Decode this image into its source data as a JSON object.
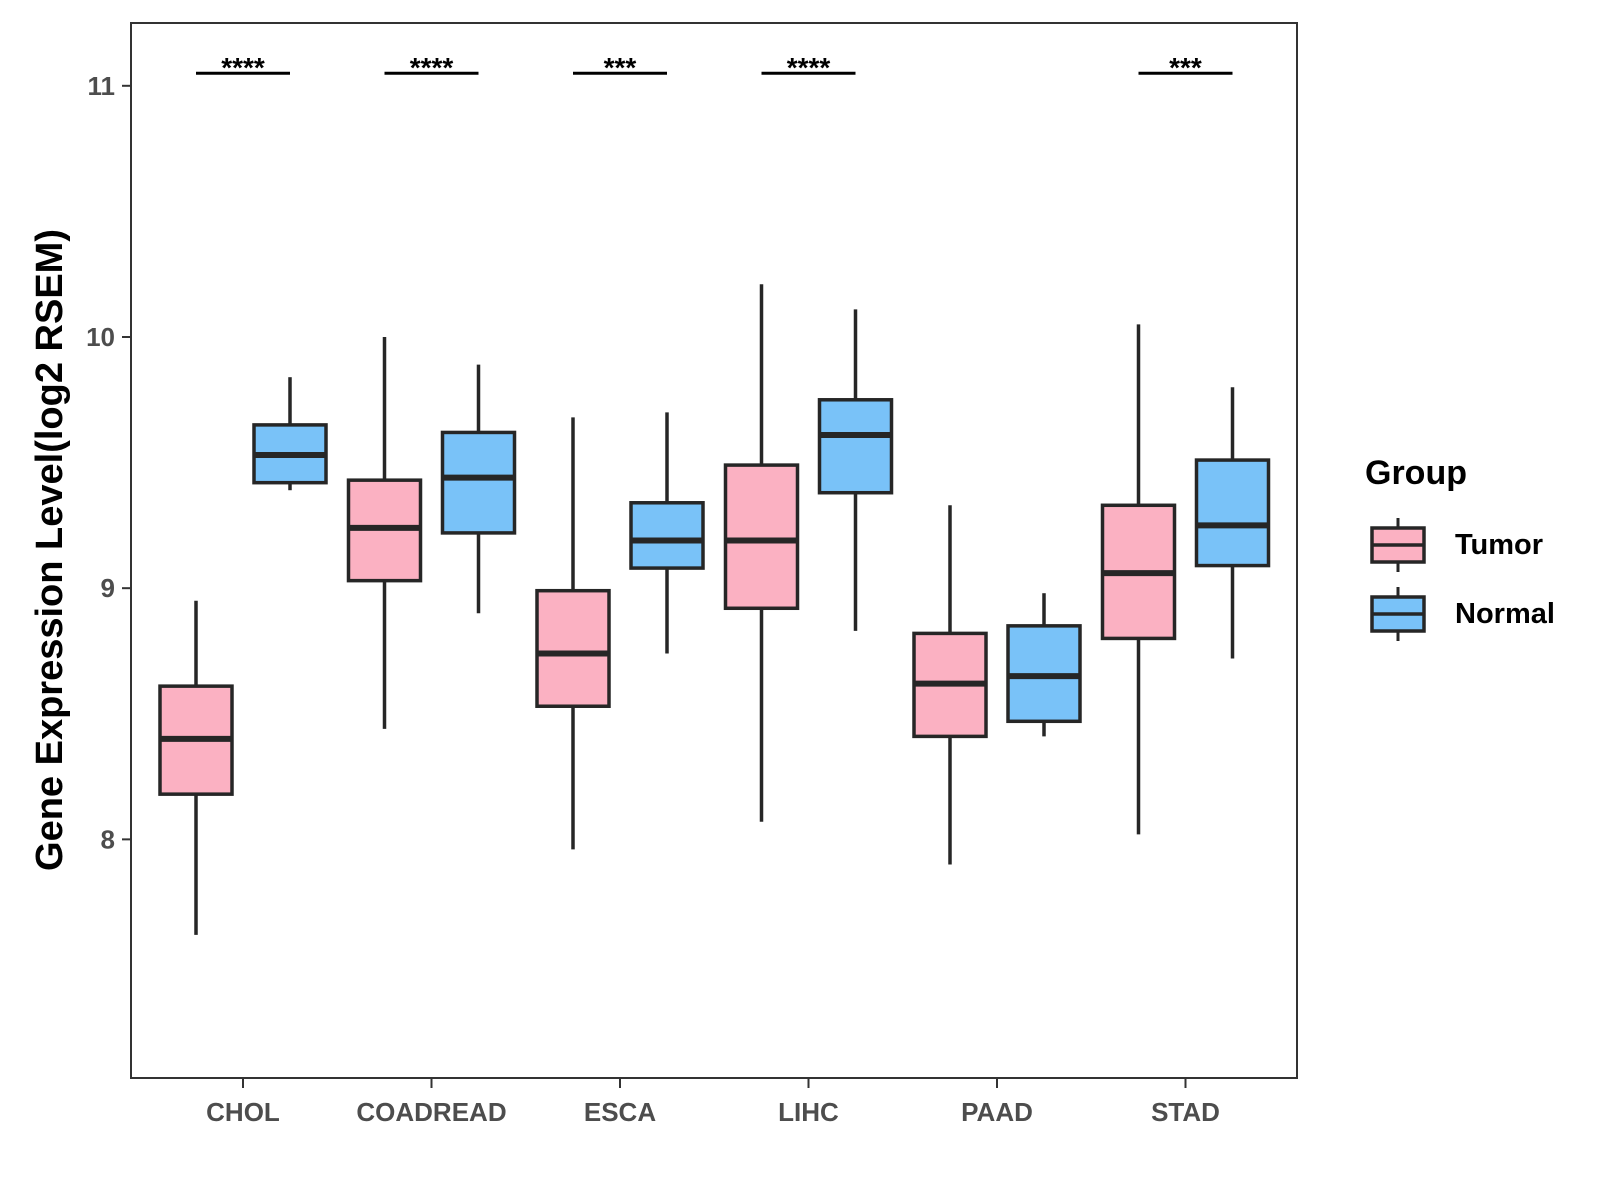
{
  "chart_data": {
    "type": "box",
    "ylabel": "Gene Expression Level(log2 RSEM)",
    "xlabel": "",
    "ylim": [
      7.05,
      11.25
    ],
    "yticks": [
      "8",
      "9",
      "10",
      "11"
    ],
    "categories": [
      "CHOL",
      "COADREAD",
      "ESCA",
      "LIHC",
      "PAAD",
      "STAD"
    ],
    "legend": {
      "title": "Group",
      "position": "right",
      "entries": [
        {
          "name": "Tumor",
          "color": "#FBB1C2"
        },
        {
          "name": "Normal",
          "color": "#79C2F8"
        }
      ]
    },
    "series": [
      {
        "name": "Tumor",
        "color": "#FBB1C2",
        "boxes": [
          {
            "category": "CHOL",
            "whisker_low": 7.62,
            "q1": 8.18,
            "median": 8.4,
            "q3": 8.61,
            "whisker_high": 8.95
          },
          {
            "category": "COADREAD",
            "whisker_low": 8.44,
            "q1": 9.03,
            "median": 9.24,
            "q3": 9.43,
            "whisker_high": 10.0
          },
          {
            "category": "ESCA",
            "whisker_low": 7.96,
            "q1": 8.53,
            "median": 8.74,
            "q3": 8.99,
            "whisker_high": 9.68
          },
          {
            "category": "LIHC",
            "whisker_low": 8.07,
            "q1": 8.92,
            "median": 9.19,
            "q3": 9.49,
            "whisker_high": 10.21
          },
          {
            "category": "PAAD",
            "whisker_low": 7.9,
            "q1": 8.41,
            "median": 8.62,
            "q3": 8.82,
            "whisker_high": 9.33
          },
          {
            "category": "STAD",
            "whisker_low": 8.02,
            "q1": 8.8,
            "median": 9.06,
            "q3": 9.33,
            "whisker_high": 10.05
          }
        ]
      },
      {
        "name": "Normal",
        "color": "#79C2F8",
        "boxes": [
          {
            "category": "CHOL",
            "whisker_low": 9.39,
            "q1": 9.42,
            "median": 9.53,
            "q3": 9.65,
            "whisker_high": 9.84
          },
          {
            "category": "COADREAD",
            "whisker_low": 8.9,
            "q1": 9.22,
            "median": 9.44,
            "q3": 9.62,
            "whisker_high": 9.89
          },
          {
            "category": "ESCA",
            "whisker_low": 8.74,
            "q1": 9.08,
            "median": 9.19,
            "q3": 9.34,
            "whisker_high": 9.7
          },
          {
            "category": "LIHC",
            "whisker_low": 8.83,
            "q1": 9.38,
            "median": 9.61,
            "q3": 9.75,
            "whisker_high": 10.11
          },
          {
            "category": "PAAD",
            "whisker_low": 8.41,
            "q1": 8.47,
            "median": 8.65,
            "q3": 8.85,
            "whisker_high": 8.98
          },
          {
            "category": "STAD",
            "whisker_low": 8.72,
            "q1": 9.09,
            "median": 9.25,
            "q3": 9.51,
            "whisker_high": 9.8
          }
        ]
      }
    ],
    "significance": [
      {
        "category": "CHOL",
        "label": "****",
        "y": 11.05
      },
      {
        "category": "COADREAD",
        "label": "****",
        "y": 11.05
      },
      {
        "category": "ESCA",
        "label": "***",
        "y": 11.05
      },
      {
        "category": "LIHC",
        "label": "****",
        "y": 11.05
      },
      {
        "category": "STAD",
        "label": "***",
        "y": 11.05
      }
    ]
  }
}
